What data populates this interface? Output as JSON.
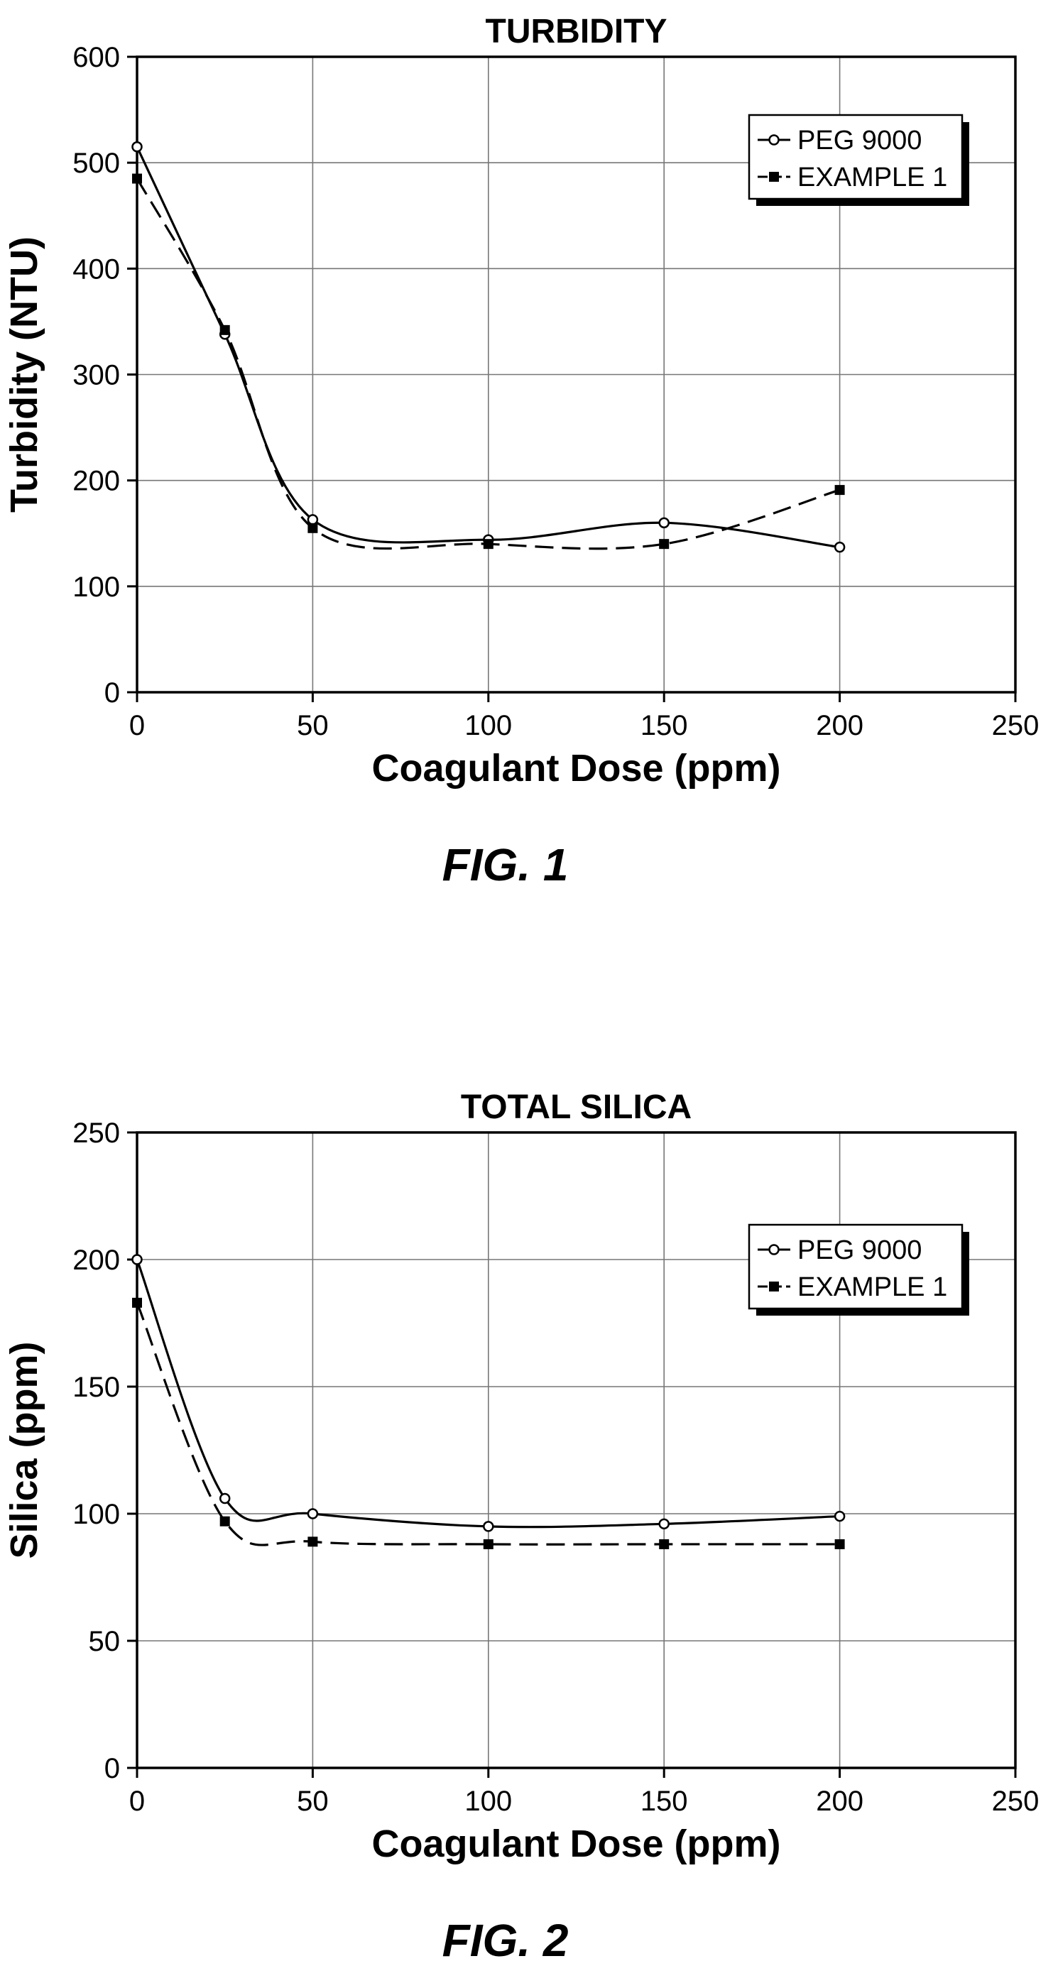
{
  "chart_data": [
    {
      "type": "line",
      "title": "TURBIDITY",
      "xlabel": "Coagulant Dose (ppm)",
      "ylabel": "Turbidity (NTU)",
      "xlim": [
        0,
        250
      ],
      "ylim": [
        0,
        600
      ],
      "x_ticks": [
        0,
        50,
        100,
        150,
        200,
        250
      ],
      "y_ticks": [
        0,
        100,
        200,
        300,
        400,
        500,
        600
      ],
      "grid": true,
      "legend_position": "top-right",
      "caption": "FIG. 1",
      "series": [
        {
          "name": "PEG 9000",
          "line_style": "solid",
          "marker": "open-circle",
          "x": [
            0,
            25,
            50,
            100,
            150,
            200
          ],
          "y": [
            515,
            338,
            163,
            144,
            160,
            137
          ]
        },
        {
          "name": "EXAMPLE 1",
          "line_style": "dashed",
          "marker": "filled-square",
          "x": [
            0,
            25,
            50,
            100,
            150,
            200
          ],
          "y": [
            485,
            342,
            155,
            140,
            140,
            191
          ]
        }
      ]
    },
    {
      "type": "line",
      "title": "TOTAL SILICA",
      "xlabel": "Coagulant Dose (ppm)",
      "ylabel": "Silica (ppm)",
      "xlim": [
        0,
        250
      ],
      "ylim": [
        0,
        250
      ],
      "x_ticks": [
        0,
        50,
        100,
        150,
        200,
        250
      ],
      "y_ticks": [
        0,
        50,
        100,
        150,
        200,
        250
      ],
      "grid": true,
      "legend_position": "top-right",
      "caption": "FIG. 2",
      "series": [
        {
          "name": "PEG 9000",
          "line_style": "solid",
          "marker": "open-circle",
          "x": [
            0,
            25,
            50,
            100,
            150,
            200
          ],
          "y": [
            200,
            106,
            100,
            95,
            96,
            99
          ]
        },
        {
          "name": "EXAMPLE 1",
          "line_style": "dashed",
          "marker": "filled-square",
          "x": [
            0,
            25,
            50,
            100,
            150,
            200
          ],
          "y": [
            183,
            97,
            89,
            88,
            88,
            88
          ]
        }
      ]
    }
  ]
}
